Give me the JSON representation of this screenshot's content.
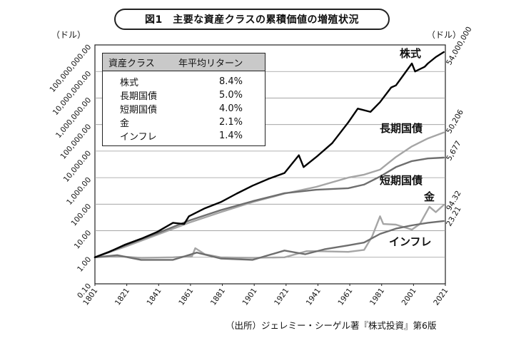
{
  "title": "図1　主要な資産クラスの累積価値の増殖状況",
  "unit_left": "（ドル）",
  "unit_right": "（ドル）",
  "source": "（出所）ジェレミー・シーゲル著『株式投資』第6版",
  "legend": {
    "header": [
      "資産クラス",
      "年平均リターン"
    ],
    "rows": [
      {
        "name": "株式",
        "return": "8.4%"
      },
      {
        "name": "長期国債",
        "return": "5.0%"
      },
      {
        "name": "短期国債",
        "return": "4.0%"
      },
      {
        "name": "金",
        "return": "2.1%"
      },
      {
        "name": "インフレ",
        "return": "1.4%"
      }
    ]
  },
  "chart_data": {
    "type": "line",
    "yscale": "log",
    "ylim": [
      0.1,
      100000000
    ],
    "xlim": [
      1801,
      2021
    ],
    "grid": "horizontal",
    "x_ticks": [
      "1801",
      "1821",
      "1841",
      "1861",
      "1881",
      "1901",
      "1921",
      "1941",
      "1961",
      "1981",
      "2001",
      "2021"
    ],
    "y_ticks": [
      "0.10",
      "1.00",
      "10.00",
      "100.00",
      "1,000.00",
      "10,000.00",
      "100,000.00",
      "1,000,000.00",
      "10,000,000.00",
      "100,000,000.00"
    ],
    "series": [
      {
        "name": "株式",
        "final_label": "54,000,000",
        "color": "#000000",
        "x": [
          1801,
          1810,
          1820,
          1830,
          1840,
          1850,
          1857,
          1860,
          1870,
          1880,
          1890,
          1900,
          1910,
          1920,
          1929,
          1932,
          1940,
          1950,
          1960,
          1966,
          1974,
          1980,
          1987,
          1990,
          2000,
          2002,
          2008,
          2010,
          2015,
          2020
        ],
        "y": [
          1,
          1.6,
          3,
          5,
          9,
          20,
          18,
          35,
          70,
          120,
          250,
          500,
          900,
          1500,
          7000,
          2500,
          6000,
          20000,
          120000,
          400000,
          300000,
          700000,
          2500000,
          3000000,
          20000000,
          10000000,
          15000000,
          20000000,
          35000000,
          54000000
        ]
      },
      {
        "name": "長期国債",
        "final_label": "50,206",
        "color": "#a5a5a5",
        "x": [
          1801,
          1820,
          1840,
          1860,
          1880,
          1900,
          1920,
          1940,
          1960,
          1970,
          1980,
          1990,
          2000,
          2010,
          2020
        ],
        "y": [
          1,
          2.5,
          7,
          20,
          50,
          120,
          250,
          450,
          1000,
          1300,
          2000,
          6000,
          15000,
          30000,
          50206
        ]
      },
      {
        "name": "短期国債",
        "final_label": "5,677",
        "color": "#6e6e6e",
        "x": [
          1801,
          1820,
          1840,
          1860,
          1880,
          1900,
          1920,
          1940,
          1960,
          1970,
          1980,
          1990,
          2000,
          2010,
          2020
        ],
        "y": [
          1,
          2.8,
          8,
          24,
          60,
          130,
          260,
          350,
          400,
          550,
          1100,
          2500,
          4200,
          5300,
          5677
        ]
      },
      {
        "name": "金",
        "final_label": "94.32",
        "color": "#a5a5a5",
        "x": [
          1801,
          1815,
          1830,
          1850,
          1862,
          1864,
          1870,
          1880,
          1900,
          1920,
          1934,
          1940,
          1960,
          1970,
          1975,
          1980,
          1982,
          1990,
          2000,
          2005,
          2011,
          2015,
          2020
        ],
        "y": [
          1,
          1.1,
          0.95,
          1,
          1.1,
          2.2,
          1.3,
          1,
          0.95,
          1,
          1.7,
          1.7,
          1.6,
          1.9,
          6,
          35,
          18,
          17,
          11,
          18,
          80,
          50,
          94.32
        ]
      },
      {
        "name": "インフレ",
        "final_label": "23.21",
        "color": "#6e6e6e",
        "x": [
          1801,
          1815,
          1830,
          1850,
          1865,
          1880,
          1900,
          1920,
          1933,
          1945,
          1960,
          1970,
          1980,
          1990,
          2000,
          2010,
          2020
        ],
        "y": [
          1,
          1.2,
          0.8,
          0.8,
          1.5,
          0.9,
          0.8,
          1.8,
          1.3,
          2,
          2.8,
          3.6,
          7.6,
          12,
          16,
          20,
          23.21
        ]
      }
    ],
    "series_labels": [
      "株式",
      "長期国債",
      "短期国債",
      "金",
      "インフレ"
    ]
  }
}
